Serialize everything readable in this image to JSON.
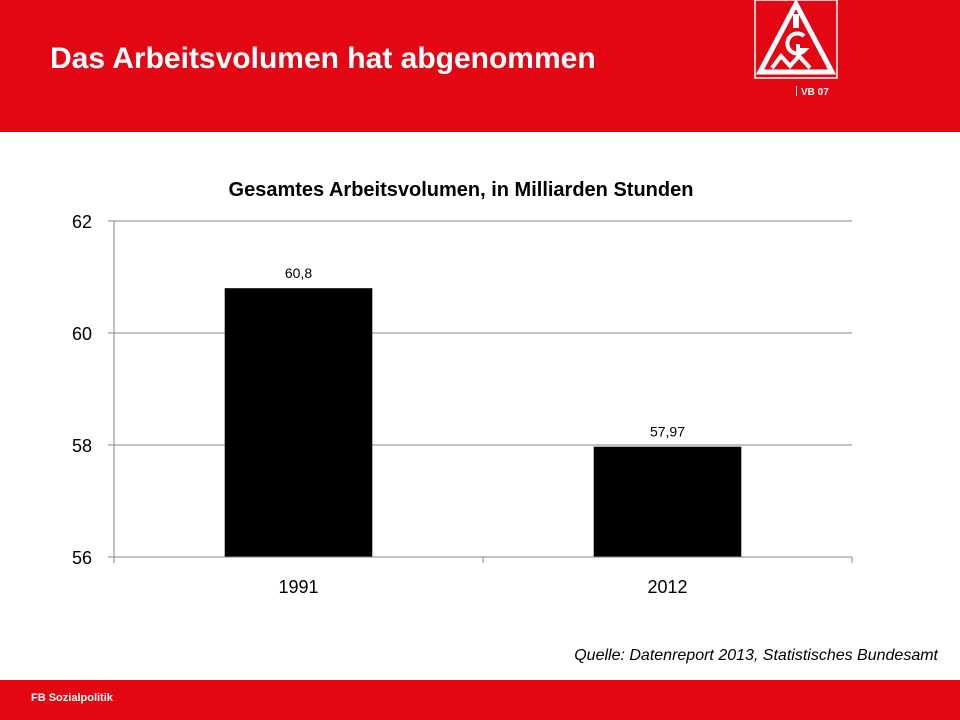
{
  "header": {
    "title": "Das Arbeitsvolumen hat abgenommen",
    "logo_tag": "VB 07",
    "logo_text": "IG M"
  },
  "colors": {
    "brand_red": "#e30613",
    "bar": "#000000",
    "grid": "#868686"
  },
  "chart_data": {
    "type": "bar",
    "title": "Gesamtes Arbeitsvolumen, in Milliarden Stunden",
    "categories": [
      "1991",
      "2012"
    ],
    "values": [
      60.8,
      57.97
    ],
    "value_labels": [
      "60,8",
      "57,97"
    ],
    "ylim": [
      56,
      62
    ],
    "yticks": [
      56,
      58,
      60,
      62
    ],
    "xlabel": "",
    "ylabel": "",
    "grid": true,
    "legend": "none"
  },
  "source": "Quelle: Datenreport 2013, Statistisches Bundesamt",
  "footer": {
    "label": "FB Sozialpolitik"
  }
}
